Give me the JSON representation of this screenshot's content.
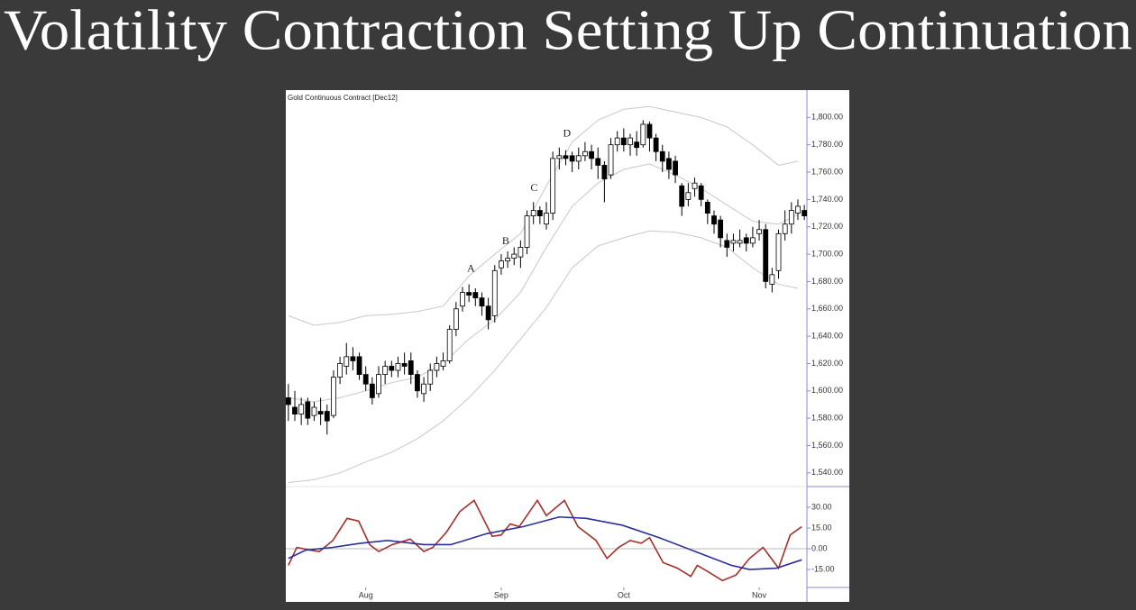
{
  "title": "Volatility Contraction Setting Up Continuation",
  "chart_data": [
    {
      "type": "candlestick",
      "title": "Gold Continuous Contract [Dec12]",
      "xlim": [
        -0.4,
        80.4
      ],
      "ylim": [
        1530,
        1820
      ],
      "yticks": [
        {
          "value": 1540,
          "label": "1,540.00"
        },
        {
          "value": 1560,
          "label": "1,560.00"
        },
        {
          "value": 1580,
          "label": "1,580.00"
        },
        {
          "value": 1600,
          "label": "1,600.00"
        },
        {
          "value": 1620,
          "label": "1,620.00"
        },
        {
          "value": 1640,
          "label": "1,640.00"
        },
        {
          "value": 1660,
          "label": "1,660.00"
        },
        {
          "value": 1680,
          "label": "1,680.00"
        },
        {
          "value": 1700,
          "label": "1,700.00"
        },
        {
          "value": 1720,
          "label": "1,720.00"
        },
        {
          "value": 1740,
          "label": "1,740.00"
        },
        {
          "value": 1760,
          "label": "1,760.00"
        },
        {
          "value": 1780,
          "label": "1,780.00"
        },
        {
          "value": 1800,
          "label": "1,800.00"
        }
      ],
      "up_color": "#ffffff",
      "down_color": "#000000",
      "open": [
        1595,
        1588,
        1583,
        1592,
        1582,
        1585,
        1585,
        1582,
        1610,
        1618,
        1625,
        1625,
        1612,
        1605,
        1598,
        1612,
        1618,
        1615,
        1620,
        1622,
        1612,
        1598,
        1605,
        1615,
        1618,
        1622,
        1645,
        1662,
        1672,
        1672,
        1668,
        1662,
        1655,
        1690,
        1695,
        1697,
        1698,
        1705,
        1728,
        1732,
        1722,
        1730,
        1770,
        1772,
        1772,
        1768,
        1772,
        1775,
        1770,
        1765,
        1758,
        1780,
        1785,
        1780,
        1782,
        1780,
        1795,
        1785,
        1775,
        1770,
        1768,
        1750,
        1740,
        1748,
        1750,
        1738,
        1728,
        1725,
        1710,
        1708,
        1708,
        1712,
        1708,
        1715,
        1718,
        1678,
        1688,
        1715,
        1722,
        1730,
        1732
      ],
      "high": [
        1605,
        1600,
        1595,
        1595,
        1592,
        1595,
        1590,
        1615,
        1625,
        1635,
        1632,
        1628,
        1618,
        1610,
        1618,
        1622,
        1622,
        1625,
        1628,
        1628,
        1615,
        1610,
        1620,
        1625,
        1628,
        1648,
        1665,
        1676,
        1678,
        1675,
        1672,
        1668,
        1692,
        1700,
        1702,
        1705,
        1710,
        1732,
        1738,
        1735,
        1738,
        1775,
        1778,
        1776,
        1775,
        1778,
        1782,
        1780,
        1778,
        1768,
        1785,
        1790,
        1792,
        1788,
        1790,
        1798,
        1797,
        1788,
        1780,
        1775,
        1772,
        1752,
        1752,
        1756,
        1752,
        1740,
        1732,
        1728,
        1715,
        1715,
        1718,
        1715,
        1720,
        1725,
        1722,
        1690,
        1718,
        1732,
        1738,
        1740,
        1736
      ],
      "low": [
        1578,
        1578,
        1575,
        1575,
        1578,
        1575,
        1568,
        1580,
        1605,
        1612,
        1615,
        1608,
        1600,
        1590,
        1595,
        1605,
        1610,
        1610,
        1612,
        1605,
        1595,
        1592,
        1600,
        1610,
        1615,
        1620,
        1640,
        1658,
        1665,
        1662,
        1655,
        1645,
        1650,
        1685,
        1690,
        1692,
        1690,
        1700,
        1722,
        1722,
        1718,
        1725,
        1762,
        1765,
        1760,
        1762,
        1768,
        1762,
        1755,
        1738,
        1755,
        1775,
        1775,
        1772,
        1772,
        1778,
        1775,
        1768,
        1760,
        1755,
        1752,
        1728,
        1735,
        1742,
        1735,
        1722,
        1715,
        1705,
        1698,
        1702,
        1705,
        1702,
        1705,
        1710,
        1675,
        1672,
        1682,
        1710,
        1715,
        1725,
        1725
      ],
      "close": [
        1590,
        1583,
        1590,
        1580,
        1588,
        1583,
        1578,
        1610,
        1620,
        1625,
        1622,
        1612,
        1605,
        1595,
        1612,
        1618,
        1615,
        1620,
        1618,
        1612,
        1600,
        1605,
        1615,
        1620,
        1622,
        1645,
        1660,
        1672,
        1670,
        1668,
        1662,
        1652,
        1688,
        1695,
        1697,
        1700,
        1705,
        1728,
        1732,
        1728,
        1730,
        1770,
        1772,
        1770,
        1768,
        1772,
        1775,
        1770,
        1765,
        1755,
        1780,
        1785,
        1780,
        1785,
        1778,
        1795,
        1785,
        1775,
        1768,
        1762,
        1758,
        1735,
        1745,
        1752,
        1740,
        1730,
        1722,
        1712,
        1705,
        1710,
        1710,
        1708,
        1712,
        1718,
        1680,
        1685,
        1715,
        1722,
        1732,
        1735,
        1728
      ],
      "bands": {
        "color": "#c8c8c8",
        "x": [
          0,
          4,
          8,
          12,
          16,
          20,
          24,
          28,
          32,
          36,
          40,
          44,
          48,
          52,
          56,
          60,
          64,
          68,
          72,
          76,
          79
        ],
        "series": [
          {
            "values": [
              1655,
              1648,
              1650,
              1655,
              1656,
              1658,
              1662,
              1684,
              1700,
              1715,
              1750,
              1782,
              1798,
              1806,
              1808,
              1804,
              1800,
              1793,
              1780,
              1765,
              1768
            ]
          },
          {
            "values": [
              1595,
              1592,
              1595,
              1600,
              1606,
              1610,
              1620,
              1638,
              1652,
              1672,
              1705,
              1735,
              1752,
              1762,
              1766,
              1758,
              1748,
              1736,
              1724,
              1722,
              1729
            ]
          },
          {
            "values": [
              1533,
              1535,
              1540,
              1548,
              1555,
              1565,
              1578,
              1595,
              1615,
              1638,
              1661,
              1690,
              1706,
              1712,
              1717,
              1716,
              1712,
              1705,
              1690,
              1678,
              1675
            ]
          }
        ]
      },
      "annotations": [
        {
          "text": "A",
          "x": 28.3,
          "y": 1689
        },
        {
          "text": "B",
          "x": 33.7,
          "y": 1709
        },
        {
          "text": "C",
          "x": 38.1,
          "y": 1748
        },
        {
          "text": "D",
          "x": 43.2,
          "y": 1788
        }
      ]
    },
    {
      "type": "line",
      "xlim": [
        -0.4,
        80.4
      ],
      "ylim": [
        -28,
        45
      ],
      "yticks": [
        {
          "value": 30,
          "label": "30.00"
        },
        {
          "value": 15,
          "label": "15.00"
        },
        {
          "value": 0,
          "label": "0.00"
        },
        {
          "value": -15,
          "label": "-15.00"
        }
      ],
      "xticks": [
        {
          "value": 12,
          "label": "Aug"
        },
        {
          "value": 33,
          "label": "Sep"
        },
        {
          "value": 52,
          "label": "Oct"
        },
        {
          "value": 73,
          "label": "Nov"
        }
      ],
      "series": [
        {
          "color": "#a3302a",
          "x": [
            0,
            1.3,
            3.4,
            4.8,
            6.9,
            9.1,
            10.9,
            12.6,
            14,
            16.1,
            18.9,
            21,
            22.4,
            24.5,
            26.6,
            28.8,
            31.6,
            33,
            34.4,
            35.8,
            38.6,
            40,
            42.8,
            44.9,
            47.7,
            49.4,
            51.2,
            53,
            54.7,
            56,
            58.1,
            60.3,
            62.4,
            63.4,
            65.2,
            67.3,
            69.4,
            71.5,
            73.6,
            76,
            77.8,
            79.6
          ],
          "values": [
            -12,
            1,
            -1,
            -2,
            6,
            22,
            20,
            3,
            -2,
            3,
            7,
            -2,
            1,
            12,
            27,
            35,
            9,
            10,
            18,
            16,
            35,
            24,
            35,
            16,
            6,
            -7,
            1,
            6,
            4,
            8,
            -10,
            -14,
            -20,
            -12,
            -17,
            -23,
            -19,
            -7,
            1,
            -14,
            10,
            16
          ]
        },
        {
          "color": "#2b2f9a",
          "x": [
            0,
            2.7,
            6.9,
            11.2,
            15.4,
            21,
            25.2,
            30.8,
            36.4,
            42,
            46.2,
            51.8,
            57.5,
            63.1,
            68.7,
            71.5,
            75.7,
            79.6
          ],
          "values": [
            -7,
            -1,
            1,
            4,
            6,
            3,
            3,
            11,
            16,
            23,
            22,
            17,
            8,
            -2,
            -12,
            -15,
            -14,
            -8
          ]
        }
      ]
    }
  ]
}
